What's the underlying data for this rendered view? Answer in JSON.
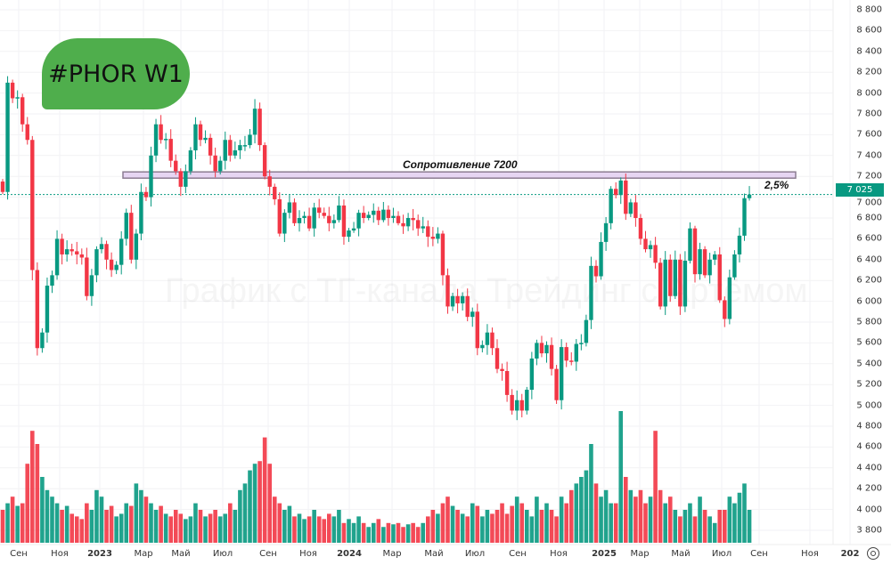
{
  "badge": {
    "text": "#PHOR W1"
  },
  "watermark": "График с ТГ-канала Трейдинг с Артёмом",
  "annotations": {
    "resistance_label": "Сопротивление 7200",
    "resistance_level": 7200,
    "percent_label": "2,5%"
  },
  "current_price": {
    "label": "7 025",
    "value": 7025
  },
  "colors": {
    "up": "#089981",
    "down": "#f23645",
    "resistance_fill": "#e6d5f2",
    "resistance_border": "#8c7d92",
    "badge": "#4fae4c"
  },
  "chart_data": {
    "type": "candlestick",
    "title": "#PHOR W1",
    "timeframe": "W1",
    "ylim": [
      3700,
      8900
    ],
    "y_ticks": [
      "8 800",
      "8 600",
      "8 400",
      "8 200",
      "8 000",
      "7 800",
      "7 600",
      "7 400",
      "7 200",
      "7 000",
      "6 800",
      "6 600",
      "6 400",
      "6 200",
      "6 000",
      "5 800",
      "5 600",
      "5 400",
      "5 200",
      "5 000",
      "4 800",
      "4 600",
      "4 400",
      "4 200",
      "4 000",
      "3 800"
    ],
    "y_tick_values": [
      8800,
      8600,
      8400,
      8200,
      8000,
      7800,
      7600,
      7400,
      7200,
      7000,
      6800,
      6600,
      6400,
      6200,
      6000,
      5800,
      5600,
      5400,
      5200,
      5000,
      4800,
      4600,
      4400,
      4200,
      4000,
      3800
    ],
    "x_ticks": [
      "Сен",
      "Ноя",
      "2023",
      "Мар",
      "Май",
      "Июл",
      "Сен",
      "Ноя",
      "2024",
      "Мар",
      "Май",
      "Июл",
      "Сен",
      "Ноя",
      "2025",
      "Мар",
      "Май",
      "Июл",
      "Сен",
      "Ноя",
      "202"
    ],
    "first_open": 7150,
    "closes": [
      7050,
      8100,
      7950,
      7960,
      7700,
      7550,
      6300,
      5550,
      5700,
      6150,
      6250,
      6600,
      6450,
      6500,
      6480,
      6450,
      6420,
      6050,
      6250,
      6500,
      6550,
      6400,
      6300,
      6350,
      6600,
      6850,
      6400,
      6650,
      7050,
      7000,
      7400,
      7700,
      7550,
      7560,
      7350,
      7250,
      7100,
      7250,
      7450,
      7700,
      7550,
      7570,
      7400,
      7250,
      7350,
      7550,
      7400,
      7450,
      7500,
      7500,
      7600,
      7850,
      7500,
      7200,
      7100,
      6980,
      6650,
      6850,
      6950,
      6750,
      6800,
      6820,
      6700,
      6900,
      6850,
      6820,
      6750,
      6780,
      6920,
      6620,
      6680,
      6700,
      6850,
      6800,
      6830,
      6870,
      6780,
      6880,
      6800,
      6820,
      6750,
      6720,
      6800,
      6780,
      6700,
      6720,
      6620,
      6600,
      6650,
      6250,
      5950,
      6050,
      5980,
      6050,
      5850,
      5900,
      5550,
      5580,
      5700,
      5550,
      5350,
      5330,
      5100,
      4950,
      5050,
      4950,
      5150,
      5450,
      5600,
      5500,
      5580,
      5350,
      5050,
      5560,
      5430,
      5420,
      5590,
      5600,
      5820,
      6340,
      6240,
      6570,
      6750,
      7080,
      7020,
      7160,
      6840,
      6950,
      6800,
      6600,
      6500,
      6540,
      6370,
      5950,
      6400,
      6050,
      6400,
      5950,
      6390,
      6700,
      6260,
      6500,
      6250,
      6400,
      6450,
      6010,
      5830,
      6230,
      6450,
      6630,
      6990,
      7025
    ],
    "volume_relative": [
      25,
      30,
      35,
      28,
      30,
      60,
      85,
      75,
      50,
      40,
      35,
      30,
      25,
      28,
      22,
      20,
      18,
      30,
      25,
      40,
      35,
      25,
      28,
      20,
      22,
      30,
      28,
      45,
      40,
      35,
      30,
      25,
      28,
      22,
      20,
      25,
      22,
      18,
      20,
      30,
      25,
      20,
      22,
      25,
      20,
      22,
      30,
      25,
      40,
      45,
      55,
      60,
      62,
      80,
      60,
      35,
      30,
      25,
      28,
      20,
      22,
      18,
      20,
      25,
      20,
      18,
      22,
      20,
      25,
      15,
      18,
      15,
      20,
      15,
      12,
      15,
      18,
      12,
      15,
      14,
      15,
      12,
      14,
      15,
      12,
      15,
      20,
      25,
      22,
      30,
      35,
      28,
      25,
      22,
      20,
      30,
      28,
      20,
      25,
      22,
      25,
      30,
      22,
      28,
      35,
      30,
      25,
      20,
      35,
      25,
      30,
      25,
      20,
      35,
      30,
      40,
      45,
      50,
      55,
      75,
      45,
      35,
      40,
      30,
      30,
      100,
      50,
      40,
      35,
      40,
      30,
      35,
      85,
      40,
      30,
      35,
      25,
      20,
      25,
      30,
      20,
      35,
      25,
      20,
      15,
      25,
      25,
      35,
      30,
      38,
      45,
      25
    ]
  }
}
